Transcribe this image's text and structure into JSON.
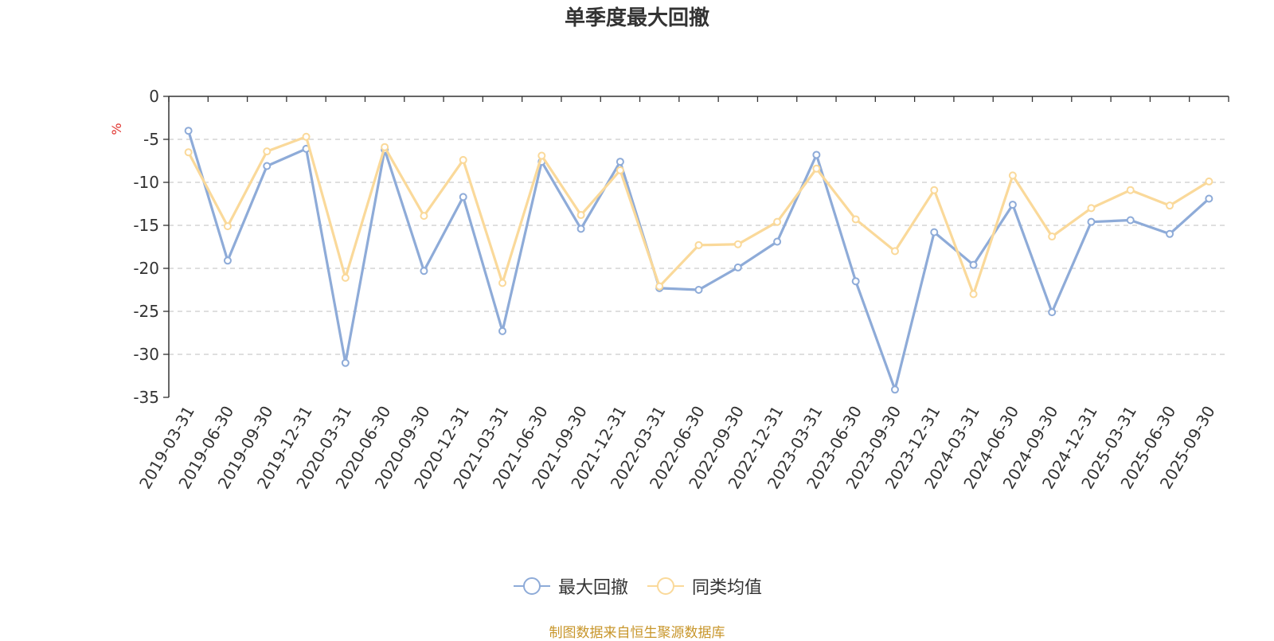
{
  "source_note": "制图数据来自恒生聚源数据库",
  "colors": {
    "series_1": "#8eabd8",
    "series_2": "#fad99a",
    "grid": "#cccccc",
    "axis": "#333333",
    "unit": "#e0312c"
  },
  "chart_data": {
    "type": "line",
    "title": "单季度最大回撤",
    "ylabel": "%",
    "xlabel": "",
    "ylim": [
      -35,
      0
    ],
    "yticks": [
      0,
      -5,
      -10,
      -15,
      -20,
      -25,
      -30,
      -35
    ],
    "grid": true,
    "legend_position": "bottom-center",
    "categories": [
      "2019-03-31",
      "2019-06-30",
      "2019-09-30",
      "2019-12-31",
      "2020-03-31",
      "2020-06-30",
      "2020-09-30",
      "2020-12-31",
      "2021-03-31",
      "2021-06-30",
      "2021-09-30",
      "2021-12-31",
      "2022-03-31",
      "2022-06-30",
      "2022-09-30",
      "2022-12-31",
      "2023-03-31",
      "2023-06-30",
      "2023-09-30",
      "2023-12-31",
      "2024-03-31",
      "2024-06-30",
      "2024-09-30",
      "2024-12-31",
      "2025-03-31",
      "2025-06-30",
      "2025-09-30"
    ],
    "series": [
      {
        "name": "最大回撤",
        "color": "#8eabd8",
        "values": [
          -4.0,
          -19.1,
          -8.1,
          -6.1,
          -31.0,
          -6.2,
          -20.3,
          -11.7,
          -27.3,
          -7.6,
          -15.4,
          -7.6,
          -22.3,
          -22.5,
          -19.9,
          -16.9,
          -6.8,
          -21.5,
          -34.1,
          -15.8,
          -19.6,
          -12.6,
          -25.1,
          -14.6,
          -14.4,
          -16.0,
          -11.9
        ]
      },
      {
        "name": "同类均值",
        "color": "#fad99a",
        "values": [
          -6.5,
          -15.1,
          -6.4,
          -4.7,
          -21.1,
          -5.9,
          -13.9,
          -7.4,
          -21.7,
          -6.9,
          -13.8,
          -8.6,
          -22.1,
          -17.3,
          -17.2,
          -14.6,
          -8.4,
          -14.3,
          -18.0,
          -10.9,
          -23.0,
          -9.2,
          -16.3,
          -13.0,
          -10.9,
          -12.7,
          -9.9
        ]
      }
    ]
  }
}
